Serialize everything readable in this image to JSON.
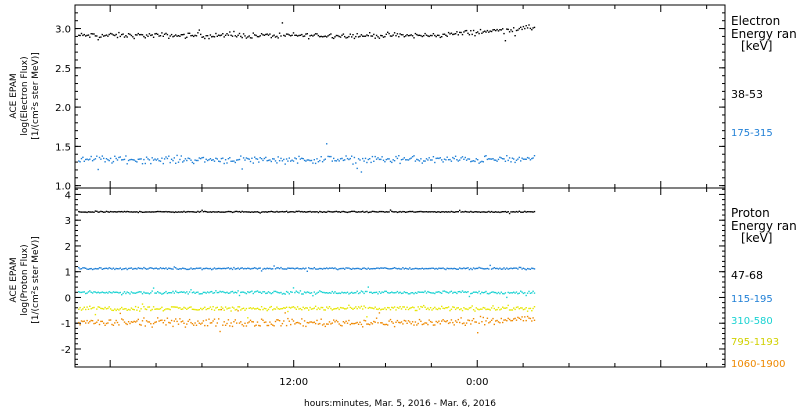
{
  "chart_data": [
    {
      "type": "scatter",
      "ylabel_lines": [
        "ACE EPAM",
        "log(Electron Flux)",
        "[1/(cm²s ster MeV)]"
      ],
      "ylim": [
        0.97,
        3.3
      ],
      "yticks": [
        1.0,
        1.5,
        2.0,
        2.5,
        3.0
      ],
      "ytick_labels": [
        "1.0",
        "1.5",
        "2.0",
        "2.5",
        "3.0"
      ],
      "legend": {
        "title_lines": [
          "Electron",
          "Energy ran",
          "[keV]"
        ],
        "placement": "right"
      },
      "series": [
        {
          "name": "38-53",
          "color": "#000000",
          "base": 2.92,
          "noise": 0.05,
          "trend_end": 3.02
        },
        {
          "name": "175-315",
          "color": "#1f7fd6",
          "base": 1.34,
          "noise": 0.07,
          "trend_end": 1.34
        }
      ]
    },
    {
      "type": "scatter",
      "ylabel_lines": [
        "ACE EPAM",
        "log(Proton Flux)",
        "[1/(cm²s ster MeV)]"
      ],
      "ylim": [
        -2.7,
        4.25
      ],
      "yticks": [
        -2,
        -1,
        0,
        1,
        2,
        3,
        4
      ],
      "ytick_labels": [
        "-2",
        "-1",
        "0",
        "1",
        "2",
        "3",
        "4"
      ],
      "legend": {
        "title_lines": [
          "Proton",
          "Energy ran",
          "[keV]"
        ],
        "placement": "right"
      },
      "series": [
        {
          "name": "47-68",
          "color": "#000000",
          "base": 3.35,
          "noise": 0.03,
          "trend_end": 3.35
        },
        {
          "name": "115-195",
          "color": "#1f7fd6",
          "base": 1.15,
          "noise": 0.05,
          "trend_end": 1.15
        },
        {
          "name": "310-580",
          "color": "#19d2d2",
          "base": 0.22,
          "noise": 0.08,
          "trend_end": 0.22
        },
        {
          "name": "795-1193",
          "color": "#e6e600",
          "base": -0.4,
          "noise": 0.13,
          "trend_end": -0.4
        },
        {
          "name": "1060-1900",
          "color": "#ee8800",
          "base": -0.95,
          "noise": 0.22,
          "trend_end": -0.8
        }
      ]
    }
  ],
  "x_axis": {
    "label": "hours:minutes, Mar.  5, 2016 - Mar.  6, 2016",
    "ticks": [
      {
        "label": "12:00",
        "hours": 12
      },
      {
        "label": "0:00",
        "hours": 24
      }
    ],
    "range_hours": [
      -2.3,
      40.2
    ],
    "data_end_hours": 27.7
  }
}
